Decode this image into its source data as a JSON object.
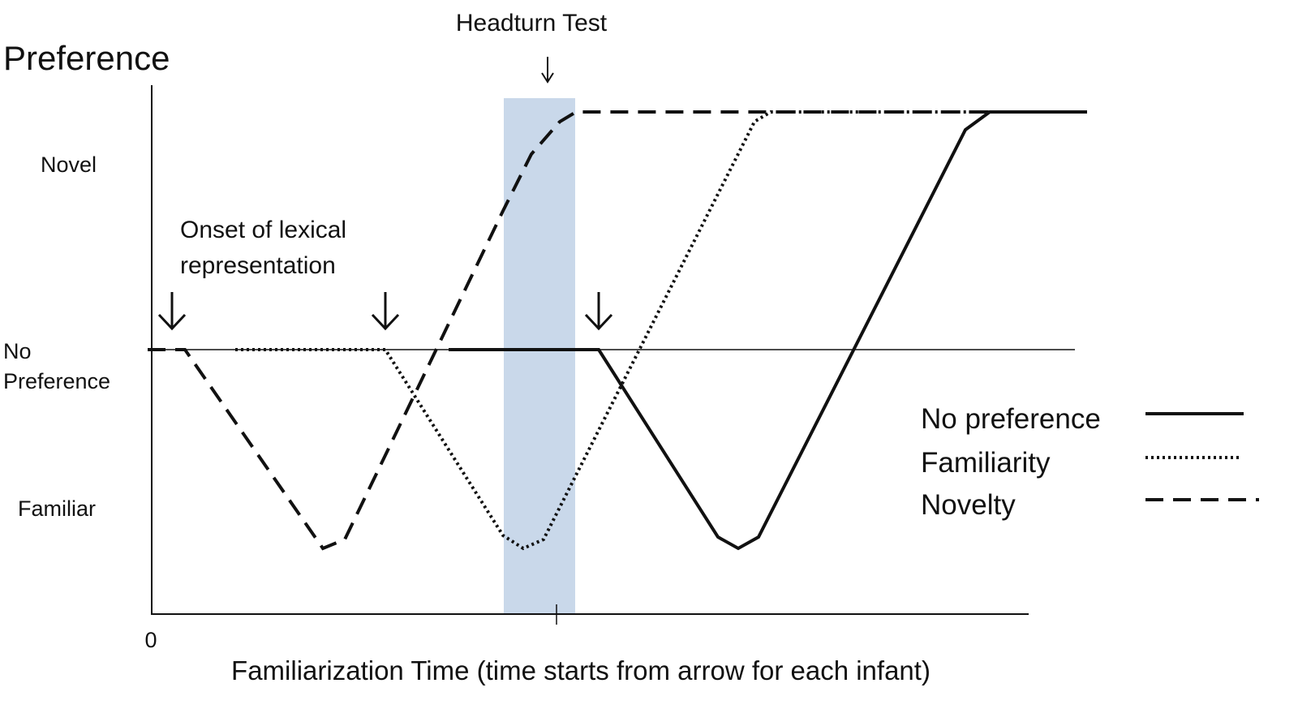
{
  "title": "Preference",
  "headturn_label": "Headturn Test",
  "y_labels": {
    "novel": "Novel",
    "no_preference": [
      "No",
      "Preference"
    ],
    "familiar": "Familiar"
  },
  "annotation": [
    "Onset of lexical",
    "representation"
  ],
  "x_origin_label": "0",
  "x_axis_label": "Familiarization Time (time starts from arrow for each infant)",
  "legend": [
    "No preference",
    "Familiarity",
    "Novelty"
  ]
}
